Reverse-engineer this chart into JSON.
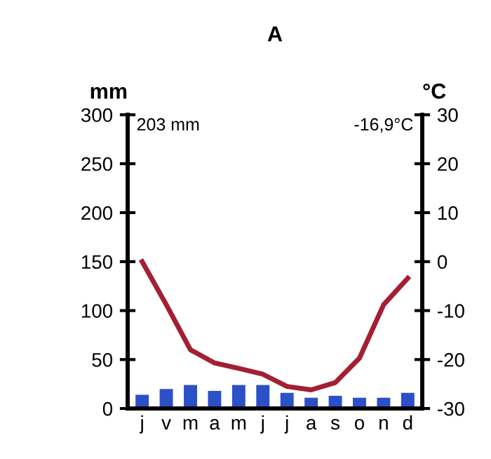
{
  "chart_data": {
    "type": "bar",
    "title": "A",
    "ylabel": "mm",
    "y2label": "°C",
    "categories": [
      "j",
      "v",
      "m",
      "a",
      "m",
      "j",
      "j",
      "a",
      "s",
      "o",
      "n",
      "d"
    ],
    "series": [
      {
        "color": "#2c50c8",
        "values": [
          14,
          20,
          24,
          18,
          24,
          24,
          16,
          11,
          13,
          11,
          11,
          16
        ]
      },
      {
        "type": "line",
        "axis": "y2",
        "color": "#a31f34",
        "values": [
          0,
          -8.8,
          -18,
          -20.7,
          -21.8,
          -23,
          -25.5,
          -26.2,
          -24.7,
          -19.7,
          -8.8,
          -3.4
        ]
      }
    ],
    "ylim": [
      0,
      300
    ],
    "yticks": [
      0,
      50,
      100,
      150,
      200,
      250,
      300
    ],
    "y2lim": [
      -30,
      30
    ],
    "y2ticks": [
      -30,
      -20,
      -10,
      0,
      10,
      20,
      30
    ],
    "annotations": [
      "203 mm",
      "-16,9°C"
    ],
    "grid": false,
    "legend": false,
    "marker": "none",
    "line_style": "solid"
  }
}
